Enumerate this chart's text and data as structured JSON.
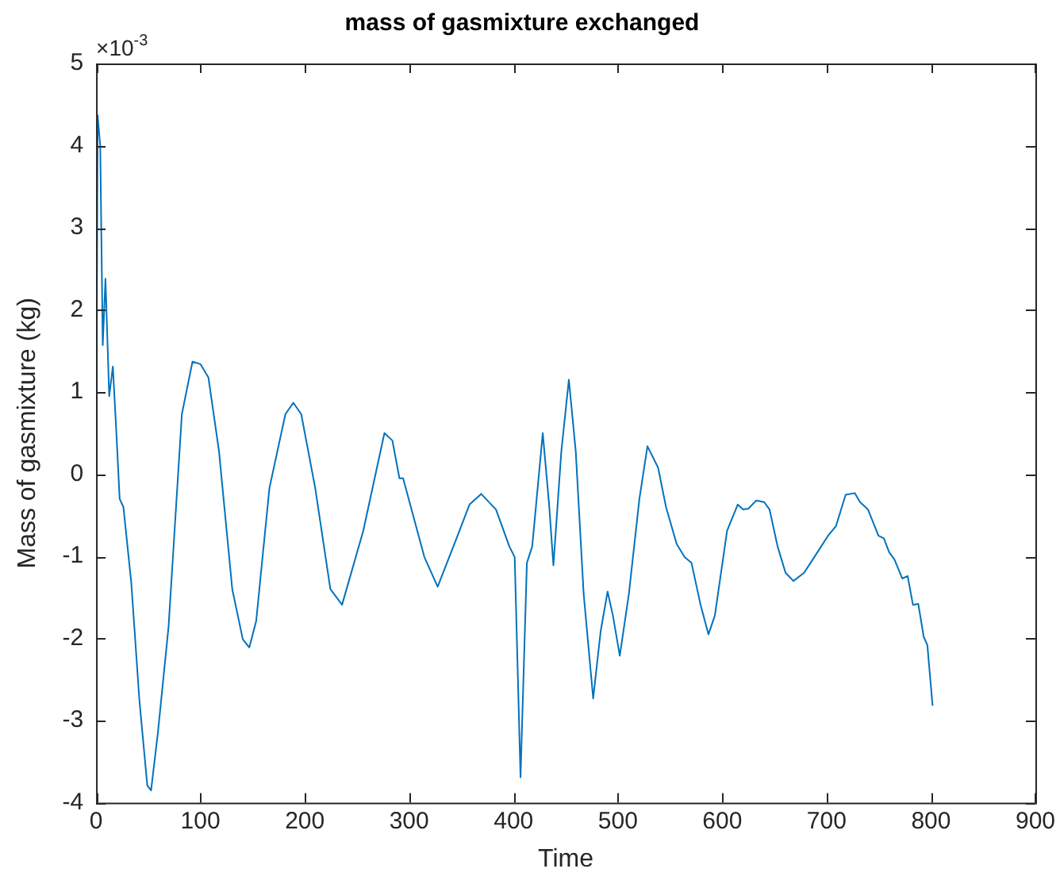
{
  "chart_data": {
    "type": "line",
    "title": "mass of gasmixture exchanged",
    "xlabel": "Time",
    "ylabel": "Mass of gasmixture (kg)",
    "annotations": [
      "×10$^{-3}$"
    ],
    "xlim": [
      0,
      900
    ],
    "xticks": [
      0,
      100,
      200,
      300,
      400,
      500,
      600,
      700,
      800,
      900
    ],
    "ylim": [
      -4,
      5
    ],
    "yticks": [
      -4,
      -3,
      -2,
      -1,
      0,
      1,
      2,
      3,
      4,
      5
    ],
    "grid": false,
    "legend": false,
    "marker": "none",
    "line_style": "solid",
    "series": [
      {
        "color": "#0072bd",
        "x": [
          0,
          1.5,
          4,
          6.4,
          9,
          12.6,
          16.1,
          19.6,
          22.6,
          26.2,
          33.8,
          41.5,
          49.1,
          52.7,
          59.3,
          69.5,
          82.2,
          92.4,
          100,
          107.6,
          117.8,
          130.5,
          140.6,
          146.8,
          153.4,
          166.1,
          181.4,
          189,
          196.6,
          210,
          224.5,
          235.7,
          256,
          276.3,
          283.9,
          290.7,
          294.2,
          304.4,
          314.6,
          327.3,
          345.1,
          357.8,
          369,
          383.2,
          396,
          401.1,
          406.7,
          412.8,
          417.9,
          428,
          434.1,
          438.2,
          445.8,
          453,
          459.6,
          467.2,
          476.3,
          483.5,
          490.1,
          495.2,
          501.8,
          510.5,
          520.6,
          528.3,
          538.5,
          546.1,
          556.3,
          563.9,
          570.5,
          579.2,
          586.8,
          592.9,
          604.6,
          614.8,
          619.9,
          625,
          632.6,
          640.2,
          645.3,
          653,
          660.6,
          668.2,
          678.4,
          691.2,
          701.3,
          709,
          718.2,
          726.9,
          732,
          739.6,
          749.7,
          754.8,
          759.9,
          765,
          772.5,
          777.6,
          782.7,
          787.8,
          793,
          796.5,
          801.5
        ],
        "values": [
          0,
          4.37,
          4.0,
          1.57,
          2.38,
          0.95,
          1.31,
          0.47,
          -0.3,
          -0.4,
          -1.33,
          -2.75,
          -3.79,
          -3.85,
          -3.14,
          -1.85,
          0.73,
          1.37,
          1.34,
          1.18,
          0.28,
          -1.4,
          -2.01,
          -2.11,
          -1.79,
          -0.17,
          0.73,
          0.87,
          0.73,
          -0.17,
          -1.4,
          -1.59,
          -0.69,
          0.5,
          0.41,
          -0.05,
          -0.05,
          -0.53,
          -1.01,
          -1.37,
          -0.79,
          -0.37,
          -0.24,
          -0.43,
          -0.88,
          -1.01,
          -3.69,
          -1.08,
          -0.88,
          0.5,
          -0.37,
          -1.11,
          0.28,
          1.15,
          0.28,
          -1.46,
          -2.73,
          -1.91,
          -1.43,
          -1.72,
          -2.21,
          -1.46,
          -0.3,
          0.34,
          0.08,
          -0.4,
          -0.85,
          -1.01,
          -1.08,
          -1.59,
          -1.95,
          -1.72,
          -0.69,
          -0.37,
          -0.43,
          -0.42,
          -0.32,
          -0.34,
          -0.43,
          -0.88,
          -1.2,
          -1.3,
          -1.2,
          -0.95,
          -0.75,
          -0.63,
          -0.25,
          -0.23,
          -0.34,
          -0.43,
          -0.75,
          -0.78,
          -0.95,
          -1.04,
          -1.27,
          -1.24,
          -1.59,
          -1.58,
          -1.98,
          -2.08,
          -2.82
        ]
      }
    ]
  }
}
